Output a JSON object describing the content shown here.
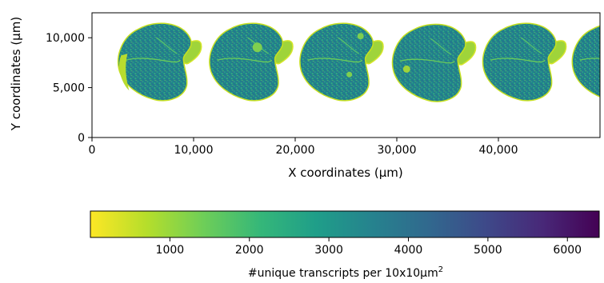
{
  "chart_data": {
    "type": "heatmap",
    "xlabel": "X coordinates (μm)",
    "ylabel": "Y coordinates (μm)",
    "xlim": [
      0,
      50000
    ],
    "ylim": [
      0,
      12500
    ],
    "x_ticks": [
      {
        "value": 0,
        "label": "0"
      },
      {
        "value": 10000,
        "label": "10,000"
      },
      {
        "value": 20000,
        "label": "20,000"
      },
      {
        "value": 30000,
        "label": "30,000"
      },
      {
        "value": 40000,
        "label": "40,000"
      }
    ],
    "y_ticks": [
      {
        "value": 0,
        "label": "0"
      },
      {
        "value": 5000,
        "label": "5,000"
      },
      {
        "value": 10000,
        "label": "10,000"
      }
    ],
    "sections": [
      {
        "center_x": 6800,
        "center_y": 7600
      },
      {
        "center_x": 15800,
        "center_y": 7600
      },
      {
        "center_x": 24700,
        "center_y": 7600
      },
      {
        "center_x": 33800,
        "center_y": 7500
      },
      {
        "center_x": 42700,
        "center_y": 7600
      },
      {
        "center_x": 51500,
        "center_y": 7600
      }
    ],
    "colorbar": {
      "label_prefix": "#unique transcripts per 10x10",
      "label_unit": "μm",
      "label_exp": "2",
      "range": [
        0,
        6400
      ],
      "ticks": [
        {
          "value": 1000,
          "label": "1000"
        },
        {
          "value": 2000,
          "label": "2000"
        },
        {
          "value": 3000,
          "label": "3000"
        },
        {
          "value": 4000,
          "label": "4000"
        },
        {
          "value": 5000,
          "label": "5000"
        },
        {
          "value": 6000,
          "label": "6000"
        }
      ],
      "colors": [
        "#fde725",
        "#b5de2b",
        "#6ece58",
        "#35b779",
        "#1f9e89",
        "#26828e",
        "#31688e",
        "#3e4989",
        "#482878",
        "#440154"
      ]
    }
  }
}
